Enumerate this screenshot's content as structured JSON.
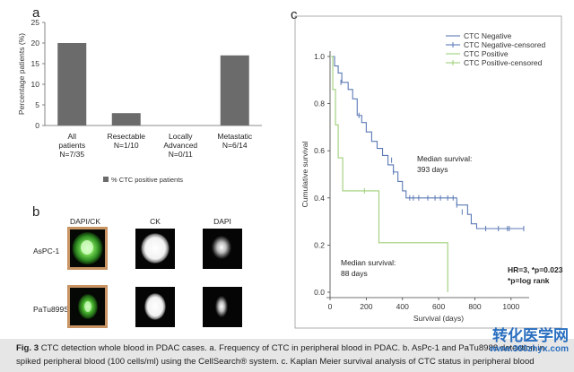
{
  "panel_a": {
    "letter": "a",
    "chart_data": {
      "type": "bar",
      "categories": [
        "All patients",
        "Resectable",
        "Locally Advanced",
        "Metastatic"
      ],
      "category_notes": [
        "N=7/35",
        "N=1/10",
        "N=0/11",
        "N=6/14"
      ],
      "series": [
        {
          "name": "% CTC positive patients",
          "values": [
            20,
            3,
            0,
            17
          ]
        }
      ],
      "ylabel": "Percentage patients (%)",
      "ylim": [
        0,
        25
      ],
      "yticks": [
        0,
        5,
        10,
        15,
        20,
        25
      ],
      "grid": false,
      "legend": "bottom",
      "colors": {
        "bar": "#6b6b6b"
      }
    }
  },
  "panel_b": {
    "letter": "b",
    "columns": [
      "DAPI/CK",
      "CK",
      "DAPI"
    ],
    "rows": [
      "AsPC-1",
      "PaTu899S"
    ]
  },
  "panel_c": {
    "letter": "c",
    "chart_data": {
      "type": "line",
      "xlabel": "Survival (days)",
      "ylabel": "Cumulative survival",
      "xlim": [
        0,
        1100
      ],
      "ylim": [
        0,
        1.0
      ],
      "xticks": [
        0,
        200,
        400,
        600,
        800,
        1000
      ],
      "yticks": [
        0.0,
        0.2,
        0.4,
        0.6,
        0.8,
        1.0
      ],
      "legend": "top-right",
      "series": [
        {
          "name": "CTC Negative",
          "color": "#5b79b5",
          "steps": [
            [
              0,
              1.0
            ],
            [
              25,
              0.96
            ],
            [
              45,
              0.93
            ],
            [
              65,
              0.89
            ],
            [
              100,
              0.86
            ],
            [
              125,
              0.82
            ],
            [
              150,
              0.75
            ],
            [
              175,
              0.72
            ],
            [
              200,
              0.68
            ],
            [
              230,
              0.64
            ],
            [
              260,
              0.61
            ],
            [
              290,
              0.58
            ],
            [
              320,
              0.54
            ],
            [
              350,
              0.51
            ],
            [
              375,
              0.47
            ],
            [
              400,
              0.43
            ],
            [
              420,
              0.4
            ],
            [
              700,
              0.37
            ],
            [
              760,
              0.33
            ],
            [
              780,
              0.29
            ],
            [
              810,
              0.27
            ],
            [
              1070,
              0.27
            ]
          ]
        },
        {
          "name": "CTC Negative-censored",
          "color": "#5b79b5",
          "points": [
            [
              60,
              0.89
            ],
            [
              160,
              0.75
            ],
            [
              340,
              0.56
            ],
            [
              350,
              0.51
            ],
            [
              440,
              0.4
            ],
            [
              460,
              0.4
            ],
            [
              490,
              0.4
            ],
            [
              540,
              0.4
            ],
            [
              580,
              0.4
            ],
            [
              610,
              0.4
            ],
            [
              650,
              0.4
            ],
            [
              680,
              0.4
            ],
            [
              700,
              0.37
            ],
            [
              730,
              0.34
            ],
            [
              860,
              0.27
            ],
            [
              930,
              0.27
            ],
            [
              980,
              0.27
            ],
            [
              990,
              0.27
            ],
            [
              1070,
              0.27
            ]
          ]
        },
        {
          "name": "CTC Positive",
          "color": "#9fcf79",
          "steps": [
            [
              0,
              1.0
            ],
            [
              15,
              0.86
            ],
            [
              30,
              0.71
            ],
            [
              45,
              0.57
            ],
            [
              70,
              0.43
            ],
            [
              180,
              0.43
            ],
            [
              190,
              0.43
            ],
            [
              270,
              0.21
            ],
            [
              650,
              0.21
            ],
            [
              650,
              0.0
            ]
          ]
        },
        {
          "name": "CTC Positive-censored",
          "color": "#9fcf79",
          "points": [
            [
              190,
              0.43
            ]
          ]
        }
      ],
      "annotations": [
        {
          "text_lines": [
            "Median survival:",
            "393 days"
          ]
        },
        {
          "text_lines": [
            "Median survival:",
            "88 days"
          ]
        },
        {
          "text_lines": [
            "HR=3, *p=0.023",
            "*p=log rank"
          ]
        }
      ]
    }
  },
  "caption": {
    "fig": "Fig. 3",
    "text": " CTC detection whole blood in PDAC cases. a. Frequency of CTC in peripheral blood in PDAC. b. AsPc-1 and PaTu8988 detection in spiked peripheral blood (100 cells/ml) using the CellSearch® system. c. Kaplan Meier survival analysis of CTC status in peripheral blood"
  },
  "watermark": {
    "text": "转化医学网",
    "url": "www.360zhyx.com"
  }
}
